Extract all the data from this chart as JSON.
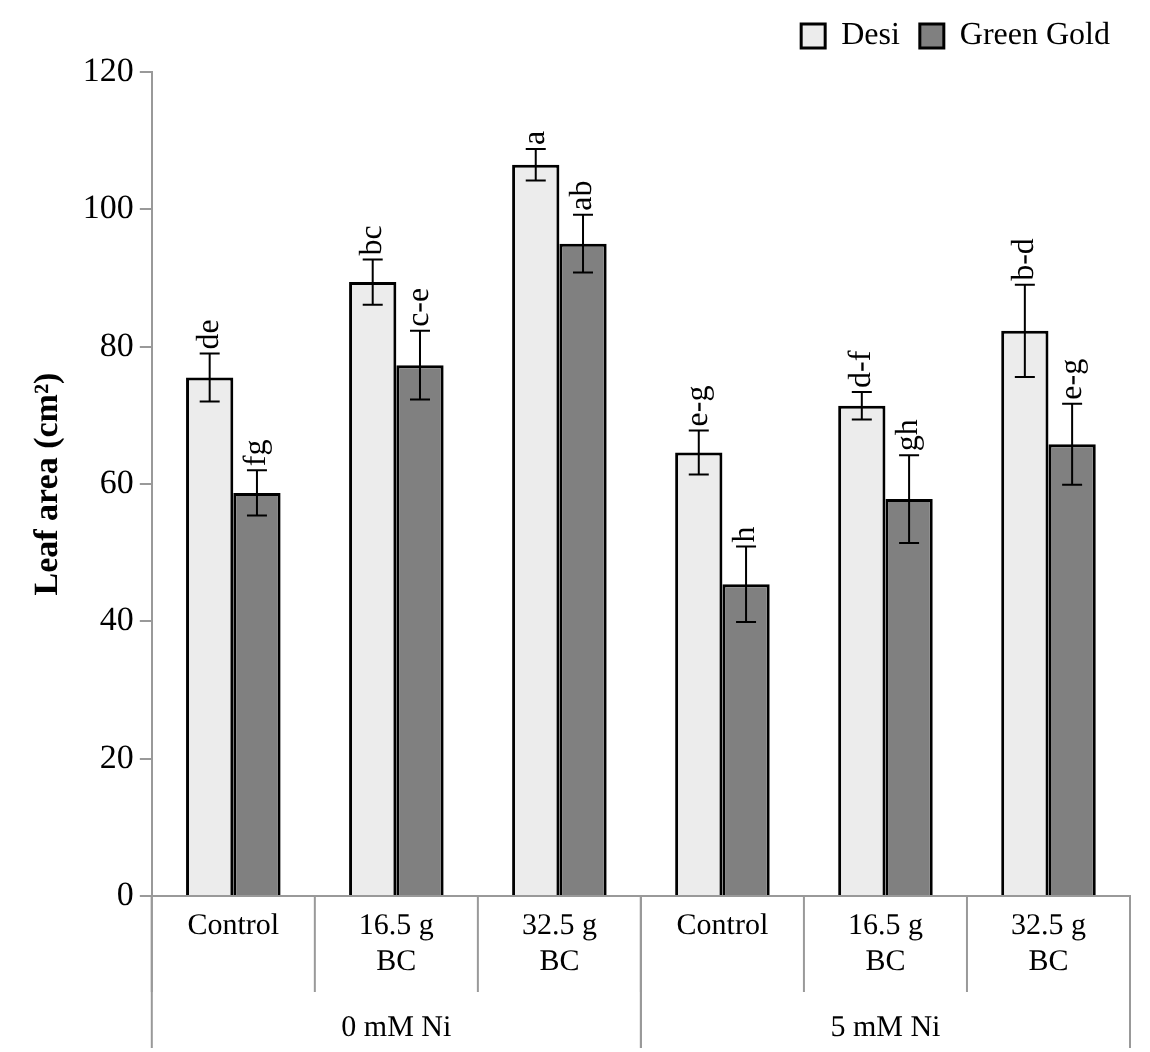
{
  "chart_data": {
    "type": "bar",
    "ylabel": "Leaf area (cm²)",
    "categories": [
      "Control",
      "16.5 g BC",
      "32.5 g BC",
      "Control",
      "16.5 g BC",
      "32.5 g BC"
    ],
    "series": [
      {
        "name": "Desi",
        "color": "#ececec",
        "values": [
          75.5,
          89.4,
          106.5,
          64.6,
          71.4,
          82.3
        ],
        "errors": [
          3.5,
          3.3,
          2.3,
          3.2,
          2,
          6.7
        ],
        "value_labels": [
          "de",
          "bc",
          "a",
          "e-g",
          "d-f",
          "b-d"
        ]
      },
      {
        "name": "Green Gold",
        "color": "#808080",
        "values": [
          58.7,
          77.3,
          95,
          45.4,
          57.8,
          65.8
        ],
        "errors": [
          3.3,
          5,
          4.2,
          5.5,
          6.4,
          5.9
        ],
        "value_labels": [
          "fg",
          "c-e",
          "ab",
          "h",
          "gh",
          "e-g"
        ]
      }
    ],
    "annotations": [
      "0 mM Ni",
      "5 mM Ni"
    ],
    "ylim": [
      0,
      120
    ],
    "yticks": [
      0,
      20,
      40,
      60,
      80,
      100,
      120
    ],
    "grid": false,
    "legend": "top right"
  }
}
